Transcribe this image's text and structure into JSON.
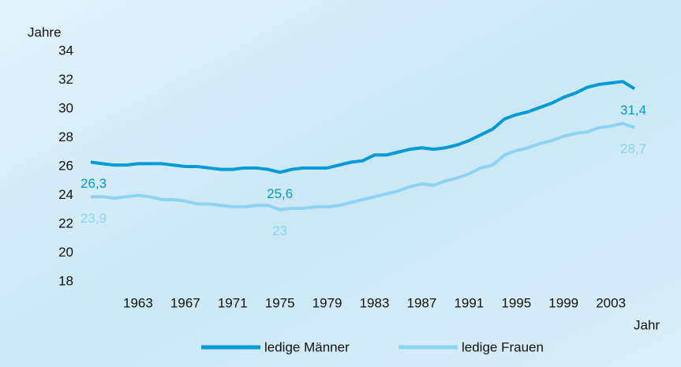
{
  "chart_data": {
    "type": "line",
    "y_label": "Jahre",
    "x_label": "Jahr",
    "x": [
      1959,
      1960,
      1961,
      1962,
      1963,
      1964,
      1965,
      1966,
      1967,
      1968,
      1969,
      1970,
      1971,
      1972,
      1973,
      1974,
      1975,
      1976,
      1977,
      1978,
      1979,
      1980,
      1981,
      1982,
      1983,
      1984,
      1985,
      1986,
      1987,
      1988,
      1989,
      1990,
      1991,
      1992,
      1993,
      1994,
      1995,
      1996,
      1997,
      1998,
      1999,
      2000,
      2001,
      2002,
      2003,
      2004,
      2005
    ],
    "series": [
      {
        "name": "ledige Männer",
        "color": "#009ad8",
        "values": [
          26.3,
          26.2,
          26.1,
          26.1,
          26.2,
          26.2,
          26.2,
          26.1,
          26.0,
          26.0,
          25.9,
          25.8,
          25.8,
          25.9,
          25.9,
          25.8,
          25.6,
          25.8,
          25.9,
          25.9,
          25.9,
          26.1,
          26.3,
          26.4,
          26.8,
          26.8,
          27.0,
          27.2,
          27.3,
          27.2,
          27.3,
          27.5,
          27.8,
          28.2,
          28.6,
          29.3,
          29.6,
          29.8,
          30.1,
          30.4,
          30.8,
          31.1,
          31.5,
          31.7,
          31.8,
          31.9,
          31.4
        ],
        "value_labels": [
          "26,3",
          null,
          null,
          null,
          null,
          null,
          null,
          null,
          null,
          null,
          null,
          null,
          null,
          null,
          null,
          null,
          "25,6",
          null,
          null,
          null,
          null,
          null,
          null,
          null,
          null,
          null,
          null,
          null,
          null,
          null,
          null,
          null,
          null,
          null,
          null,
          null,
          null,
          null,
          null,
          null,
          null,
          null,
          null,
          null,
          null,
          null,
          "31,4"
        ]
      },
      {
        "name": "ledige Frauen",
        "color": "#8dd3f2",
        "values": [
          23.9,
          23.9,
          23.8,
          23.9,
          24.0,
          23.9,
          23.7,
          23.7,
          23.6,
          23.4,
          23.4,
          23.3,
          23.2,
          23.2,
          23.3,
          23.3,
          23.0,
          23.1,
          23.1,
          23.2,
          23.2,
          23.3,
          23.5,
          23.7,
          23.9,
          24.1,
          24.3,
          24.6,
          24.8,
          24.7,
          25.0,
          25.2,
          25.5,
          25.9,
          26.1,
          26.8,
          27.1,
          27.3,
          27.6,
          27.8,
          28.1,
          28.3,
          28.4,
          28.7,
          28.8,
          29.0,
          28.7
        ],
        "value_labels": [
          "23,9",
          null,
          null,
          null,
          null,
          null,
          null,
          null,
          null,
          null,
          null,
          null,
          null,
          null,
          null,
          null,
          "23",
          null,
          null,
          null,
          null,
          null,
          null,
          null,
          null,
          null,
          null,
          null,
          null,
          null,
          null,
          null,
          null,
          null,
          null,
          null,
          null,
          null,
          null,
          null,
          null,
          null,
          null,
          null,
          null,
          null,
          "28,7"
        ]
      }
    ],
    "xlim": [
      1957.5,
      2006.5
    ],
    "xticks": [
      1963,
      1967,
      1971,
      1975,
      1979,
      1983,
      1987,
      1991,
      1995,
      1999,
      2003
    ],
    "ylim": [
      17,
      35
    ],
    "yticks": [
      18,
      20,
      22,
      24,
      26,
      28,
      30,
      32,
      34
    ],
    "grid": false
  }
}
